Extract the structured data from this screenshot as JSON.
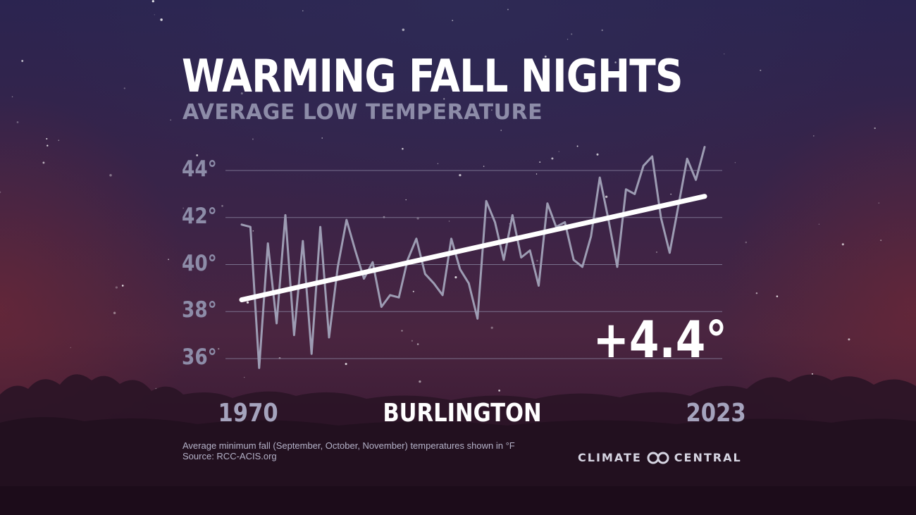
{
  "header": {
    "title": "WARMING FALL NIGHTS",
    "subtitle": "AVERAGE LOW TEMPERATURE"
  },
  "chart_data": {
    "type": "line",
    "title": "WARMING FALL NIGHTS",
    "subtitle": "AVERAGE LOW TEMPERATURE",
    "location": "BURLINGTON",
    "x_start_label": "1970",
    "x_end_label": "2023",
    "y_ticks": [
      {
        "value": 44,
        "label": "44°"
      },
      {
        "value": 42,
        "label": "42°"
      },
      {
        "value": 40,
        "label": "40°"
      },
      {
        "value": 38,
        "label": "38°"
      },
      {
        "value": 36,
        "label": "36°"
      }
    ],
    "ylim": [
      35.3,
      45.5
    ],
    "grid": true,
    "x": [
      1970,
      1971,
      1972,
      1973,
      1974,
      1975,
      1976,
      1977,
      1978,
      1979,
      1980,
      1981,
      1982,
      1983,
      1984,
      1985,
      1986,
      1987,
      1988,
      1989,
      1990,
      1991,
      1992,
      1993,
      1994,
      1995,
      1996,
      1997,
      1998,
      1999,
      2000,
      2001,
      2002,
      2003,
      2004,
      2005,
      2006,
      2007,
      2008,
      2009,
      2010,
      2011,
      2012,
      2013,
      2014,
      2015,
      2016,
      2017,
      2018,
      2019,
      2020,
      2021,
      2022,
      2023
    ],
    "series": [
      {
        "values": [
          41.7,
          41.6,
          35.6,
          40.9,
          37.5,
          42.1,
          37.0,
          41.0,
          36.2,
          41.6,
          36.9,
          39.9,
          41.9,
          40.6,
          39.4,
          40.1,
          38.2,
          38.7,
          38.6,
          40.2,
          41.1,
          39.6,
          39.2,
          38.7,
          41.1,
          39.8,
          39.2,
          37.7,
          42.7,
          41.8,
          40.2,
          42.1,
          40.3,
          40.6,
          39.1,
          42.6,
          41.6,
          41.8,
          40.2,
          39.9,
          41.2,
          43.7,
          41.9,
          39.9,
          43.2,
          43.0,
          44.2,
          44.6,
          42.0,
          40.5,
          42.5,
          44.5,
          43.6,
          45.0
        ]
      }
    ],
    "trend": {
      "start": 38.5,
      "end": 42.9
    },
    "change_label": "+4.4°",
    "line_color": "#9d9cb3",
    "trend_color": "#ffffff"
  },
  "footnote": {
    "line1": "Average minimum fall (September, October, November) temperatures shown in °F",
    "line2": "Source: RCC-ACIS.org"
  },
  "brand": {
    "left": "CLIMATE",
    "right": "CENTRAL"
  }
}
